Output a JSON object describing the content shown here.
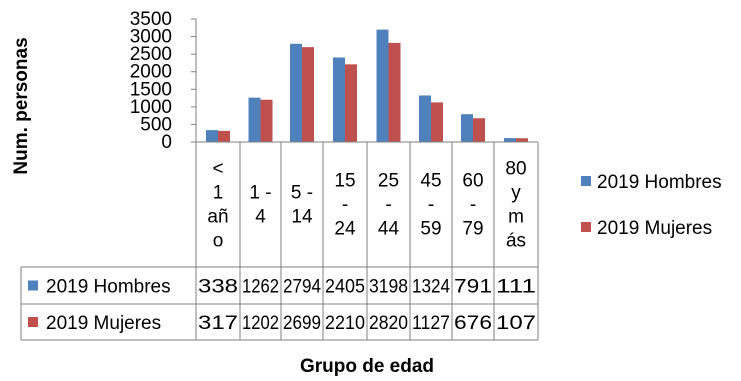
{
  "chart_data": {
    "type": "bar",
    "title": "",
    "xlabel": "Grupo de edad",
    "ylabel": "Num. personas",
    "ylim": [
      0,
      3500
    ],
    "yticks": [
      "3500",
      "3000",
      "2500",
      "2000",
      "1500",
      "1000",
      "500",
      "0"
    ],
    "categories": [
      "< 1 año",
      "1 - 4",
      "5 - 14",
      "15 - 24",
      "25 - 44",
      "45 - 59",
      "60 - 79",
      "80 y más"
    ],
    "category_lines": [
      [
        "<",
        "1",
        "añ",
        "o"
      ],
      [
        "1 -",
        "4"
      ],
      [
        "5 -",
        "14"
      ],
      [
        "15",
        "-",
        "24"
      ],
      [
        "25",
        "-",
        "44"
      ],
      [
        "45",
        "-",
        "59"
      ],
      [
        "60",
        "-",
        "79"
      ],
      [
        "80",
        "y",
        "m",
        "ás"
      ]
    ],
    "series": [
      {
        "name": "2019 Hombres",
        "color": "#4f81bd",
        "values": [
          338,
          1262,
          2794,
          2405,
          3198,
          1324,
          791,
          111
        ]
      },
      {
        "name": "2019 Mujeres",
        "color": "#c0504d",
        "values": [
          317,
          1202,
          2699,
          2210,
          2820,
          1127,
          676,
          107
        ]
      }
    ],
    "legend_position": "right",
    "data_table": true,
    "grid": false
  }
}
